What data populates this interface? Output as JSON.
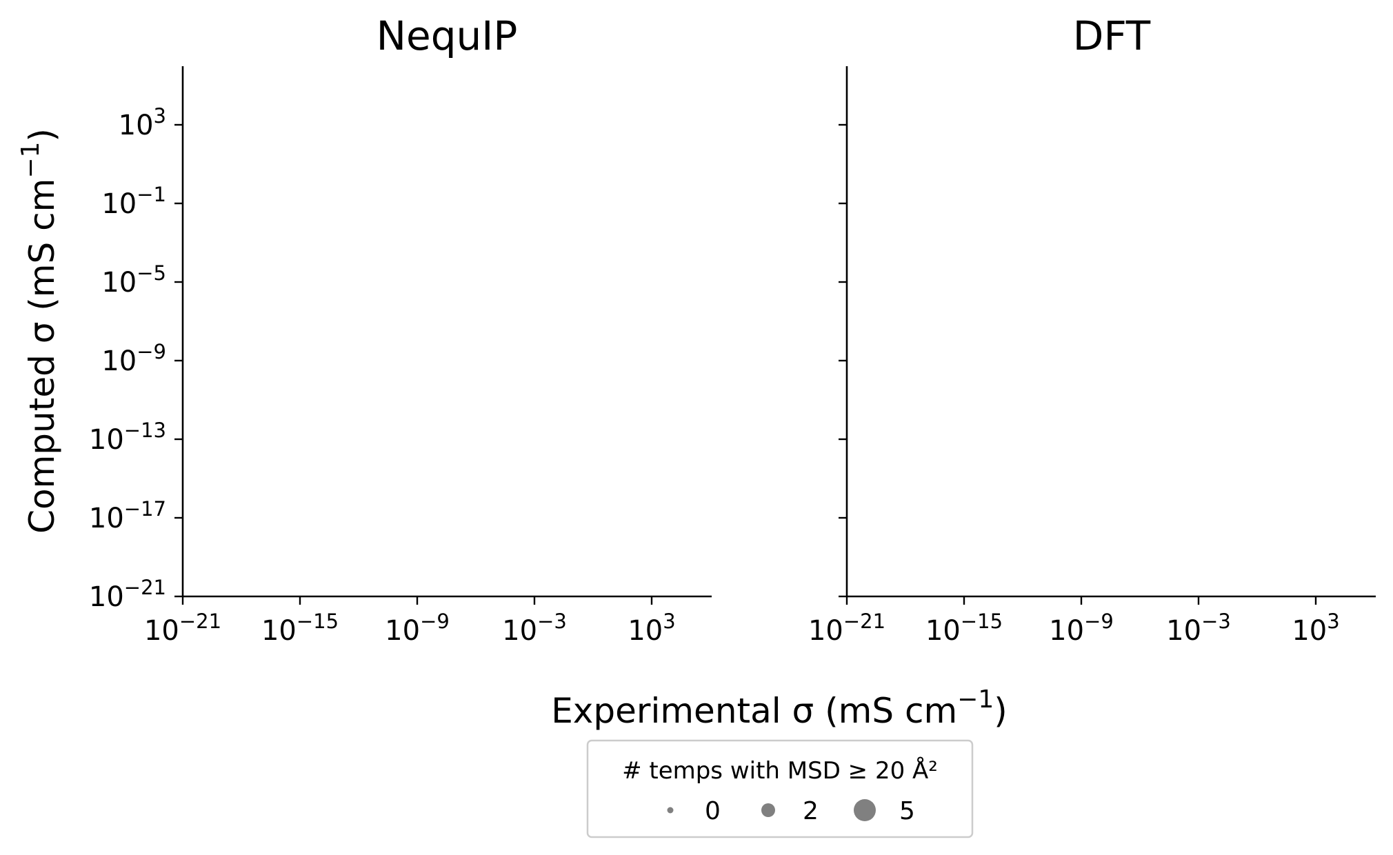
{
  "chart_data": {
    "type": "scatter",
    "panels": [
      {
        "title": "NequIP",
        "points": []
      },
      {
        "title": "DFT",
        "points": []
      }
    ],
    "x_axis": {
      "label": "Experimental σ (mS cm−1)",
      "scale": "log",
      "range_exponents": [
        -21,
        8
      ],
      "tick_exponents": [
        -21,
        -15,
        -9,
        -3,
        3
      ],
      "tick_labels": [
        "10−21",
        "10−15",
        "10−9",
        "10−3",
        "103"
      ]
    },
    "y_axis": {
      "label": "Computed σ (mS cm−1)",
      "scale": "log",
      "range_exponents": [
        -21,
        6
      ],
      "tick_exponents": [
        -21,
        -17,
        -13,
        -9,
        -5,
        -1,
        3
      ],
      "tick_labels": [
        "10−21",
        "10−17",
        "10−13",
        "10−9",
        "10−5",
        "10−1",
        "103"
      ],
      "tick_labels_shown_on": "left panel only"
    },
    "grid": false,
    "legend": {
      "placement": "bottom-center",
      "title": "# temps with MSD ≥ 20 Å²",
      "entries": [
        {
          "label": "0",
          "value": 0
        },
        {
          "label": "2",
          "value": 2
        },
        {
          "label": "5",
          "value": 5
        }
      ],
      "marker_color": "#808080"
    },
    "colors": {
      "axis": "#000000",
      "legend_border": "#cccccc"
    }
  }
}
